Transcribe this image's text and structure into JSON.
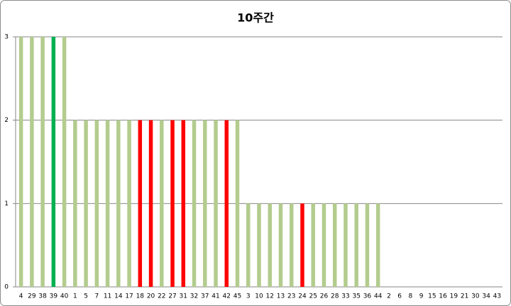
{
  "chart_data": {
    "type": "bar",
    "title": "10주간",
    "categories": [
      "4",
      "29",
      "38",
      "39",
      "40",
      "1",
      "5",
      "7",
      "11",
      "14",
      "17",
      "18",
      "20",
      "22",
      "27",
      "31",
      "32",
      "37",
      "41",
      "42",
      "45",
      "3",
      "10",
      "12",
      "13",
      "23",
      "24",
      "25",
      "26",
      "28",
      "33",
      "35",
      "36",
      "44",
      "2",
      "6",
      "8",
      "9",
      "15",
      "16",
      "19",
      "21",
      "30",
      "34",
      "43"
    ],
    "values": [
      3,
      3,
      3,
      3,
      3,
      2,
      2,
      2,
      2,
      2,
      2,
      2,
      2,
      2,
      2,
      2,
      2,
      2,
      2,
      2,
      2,
      1,
      1,
      1,
      1,
      1,
      1,
      1,
      1,
      1,
      1,
      1,
      1,
      1,
      0,
      0,
      0,
      0,
      0,
      0,
      0,
      0,
      0,
      0,
      0
    ],
    "colors": [
      "#b3cc8e",
      "#b3cc8e",
      "#b3cc8e",
      "#00b050",
      "#b3cc8e",
      "#b3cc8e",
      "#b3cc8e",
      "#b3cc8e",
      "#b3cc8e",
      "#b3cc8e",
      "#b3cc8e",
      "#ff0000",
      "#ff0000",
      "#b3cc8e",
      "#ff0000",
      "#ff0000",
      "#b3cc8e",
      "#b3cc8e",
      "#b3cc8e",
      "#ff0000",
      "#b3cc8e",
      "#b3cc8e",
      "#b3cc8e",
      "#b3cc8e",
      "#b3cc8e",
      "#b3cc8e",
      "#ff0000",
      "#b3cc8e",
      "#b3cc8e",
      "#b3cc8e",
      "#b3cc8e",
      "#b3cc8e",
      "#b3cc8e",
      "#b3cc8e",
      "#b3cc8e",
      "#b3cc8e",
      "#b3cc8e",
      "#b3cc8e",
      "#b3cc8e",
      "#b3cc8e",
      "#b3cc8e",
      "#b3cc8e",
      "#b3cc8e",
      "#b3cc8e",
      "#b3cc8e"
    ],
    "ylim": [
      0,
      3
    ],
    "yticks": [
      0,
      1,
      2,
      3
    ],
    "grid": true
  }
}
